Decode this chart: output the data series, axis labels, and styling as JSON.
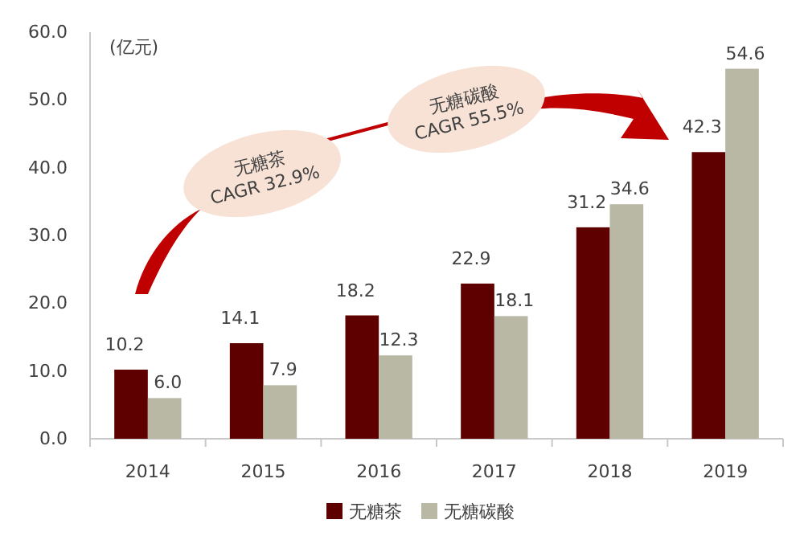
{
  "chart_data": {
    "type": "bar",
    "ylabel": "(亿元)",
    "categories": [
      "2014",
      "2015",
      "2016",
      "2017",
      "2018",
      "2019"
    ],
    "series": [
      {
        "name": "无糖茶",
        "color": "#5e0000",
        "values": [
          10.2,
          14.1,
          18.2,
          22.9,
          31.2,
          42.3
        ],
        "value_labels": [
          "10.2",
          "14.1",
          "18.2",
          "22.9",
          "31.2",
          "42.3"
        ]
      },
      {
        "name": "无糖碳酸",
        "color": "#b9b8a5",
        "values": [
          6.0,
          7.9,
          12.3,
          18.1,
          34.6,
          54.6
        ],
        "value_labels": [
          "6.0",
          "7.9",
          "12.3",
          "18.1",
          "34.6",
          "54.6"
        ]
      }
    ],
    "ylim": [
      0,
      60
    ],
    "yticks": [
      {
        "value": 0,
        "label": "0.0"
      },
      {
        "value": 10,
        "label": "10.0"
      },
      {
        "value": 20,
        "label": "20.0"
      },
      {
        "value": 30,
        "label": "30.0"
      },
      {
        "value": 40,
        "label": "40.0"
      },
      {
        "value": 50,
        "label": "50.0"
      },
      {
        "value": 60,
        "label": "60.0"
      }
    ],
    "legend": "bottom",
    "grid": false,
    "annotations": [
      "无糖茶\nCAGR 32.9%",
      "无糖碳酸\nCAGR 55.5%"
    ]
  }
}
